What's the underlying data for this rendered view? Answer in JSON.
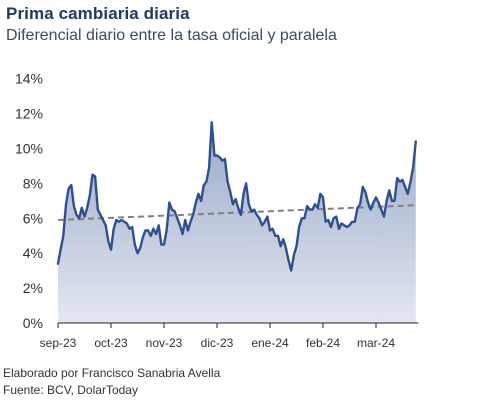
{
  "title": "Prima cambiaria diaria",
  "subtitle": "Diferencial diario entre la tasa oficial y paralela",
  "footer": {
    "elaborado": "Elaborado por Francisco Sanabria Avella",
    "fuente": "Fuente: BCV, DolarToday"
  },
  "colors": {
    "line": "#2e4f94",
    "area_top": "#9aa9c9",
    "area_bottom": "#e3e7f0",
    "trend": "#808080",
    "axis": "#222222"
  },
  "chart_data": {
    "type": "area",
    "ylim": [
      0,
      14
    ],
    "y_ticks": [
      "0%",
      "2%",
      "4%",
      "6%",
      "8%",
      "10%",
      "12%",
      "14%"
    ],
    "y_tick_values": [
      0,
      2,
      4,
      6,
      8,
      10,
      12,
      14
    ],
    "x_ticks": [
      "sep-23",
      "oct-23",
      "nov-23",
      "dic-23",
      "ene-24",
      "feb-24",
      "mar-24"
    ],
    "x_tick_positions": [
      0,
      1,
      2,
      3,
      4,
      5,
      6
    ],
    "x_range": [
      0,
      6.8
    ],
    "grid": false,
    "series": [
      {
        "style": "line-with-area",
        "x": [
          0.0,
          0.05,
          0.1,
          0.15,
          0.2,
          0.25,
          0.3,
          0.35,
          0.4,
          0.45,
          0.5,
          0.55,
          0.6,
          0.65,
          0.7,
          0.75,
          0.8,
          0.85,
          0.9,
          0.95,
          1.0,
          1.05,
          1.1,
          1.15,
          1.2,
          1.25,
          1.3,
          1.35,
          1.4,
          1.45,
          1.5,
          1.55,
          1.6,
          1.65,
          1.7,
          1.75,
          1.8,
          1.85,
          1.9,
          1.95,
          2.0,
          2.05,
          2.1,
          2.15,
          2.2,
          2.25,
          2.3,
          2.35,
          2.4,
          2.45,
          2.5,
          2.55,
          2.6,
          2.65,
          2.7,
          2.75,
          2.8,
          2.85,
          2.9,
          2.95,
          3.0,
          3.05,
          3.1,
          3.15,
          3.2,
          3.25,
          3.3,
          3.35,
          3.4,
          3.45,
          3.5,
          3.55,
          3.6,
          3.65,
          3.7,
          3.75,
          3.8,
          3.85,
          3.9,
          3.95,
          4.0,
          4.05,
          4.1,
          4.15,
          4.2,
          4.25,
          4.3,
          4.35,
          4.4,
          4.45,
          4.5,
          4.55,
          4.6,
          4.65,
          4.7,
          4.75,
          4.8,
          4.85,
          4.9,
          4.95,
          5.0,
          5.05,
          5.1,
          5.15,
          5.2,
          5.25,
          5.3,
          5.35,
          5.4,
          5.45,
          5.5,
          5.55,
          5.6,
          5.65,
          5.7,
          5.75,
          5.8,
          5.85,
          5.9,
          5.95,
          6.0,
          6.05,
          6.1,
          6.15,
          6.2,
          6.25,
          6.3,
          6.35,
          6.4,
          6.45,
          6.5,
          6.55,
          6.6,
          6.65,
          6.7,
          6.75
        ],
        "values": [
          3.4,
          4.2,
          5.0,
          6.8,
          7.7,
          7.9,
          6.7,
          6.2,
          6.0,
          6.6,
          6.1,
          6.6,
          7.3,
          8.5,
          8.4,
          6.5,
          6.2,
          5.9,
          5.6,
          4.7,
          4.2,
          5.4,
          5.9,
          5.8,
          5.9,
          5.8,
          5.7,
          5.4,
          5.5,
          4.5,
          4.0,
          4.3,
          4.9,
          5.3,
          5.3,
          5.0,
          5.4,
          5.1,
          5.6,
          4.5,
          4.5,
          5.3,
          6.9,
          6.5,
          6.4,
          6.0,
          5.6,
          5.1,
          5.9,
          5.3,
          5.8,
          6.2,
          6.9,
          7.4,
          7.0,
          7.9,
          8.1,
          8.9,
          11.5,
          9.6,
          9.6,
          9.5,
          9.3,
          9.4,
          8.1,
          7.5,
          6.8,
          7.1,
          6.6,
          6.2,
          7.4,
          8.0,
          6.8,
          6.4,
          6.5,
          6.2,
          6.0,
          5.6,
          5.8,
          6.1,
          5.3,
          5.4,
          5.0,
          5.0,
          4.4,
          4.8,
          4.3,
          3.6,
          3.0,
          3.9,
          4.4,
          5.5,
          6.0,
          6.0,
          6.7,
          6.5,
          6.5,
          6.8,
          6.6,
          7.4,
          7.2,
          5.8,
          5.9,
          5.5,
          6.0,
          6.1,
          5.4,
          5.7,
          5.6,
          5.5,
          5.6,
          5.8,
          5.8,
          6.6,
          6.8,
          7.8,
          7.5,
          6.9,
          6.5,
          6.9,
          7.2,
          6.9,
          6.5,
          6.1,
          7.0,
          7.6,
          7.0,
          7.0,
          8.3,
          8.1,
          8.2,
          7.8,
          7.4,
          8.1,
          8.9,
          10.4
        ]
      },
      {
        "style": "dashed-trend",
        "x": [
          0.0,
          6.75
        ],
        "values": [
          5.9,
          6.75
        ]
      }
    ]
  }
}
